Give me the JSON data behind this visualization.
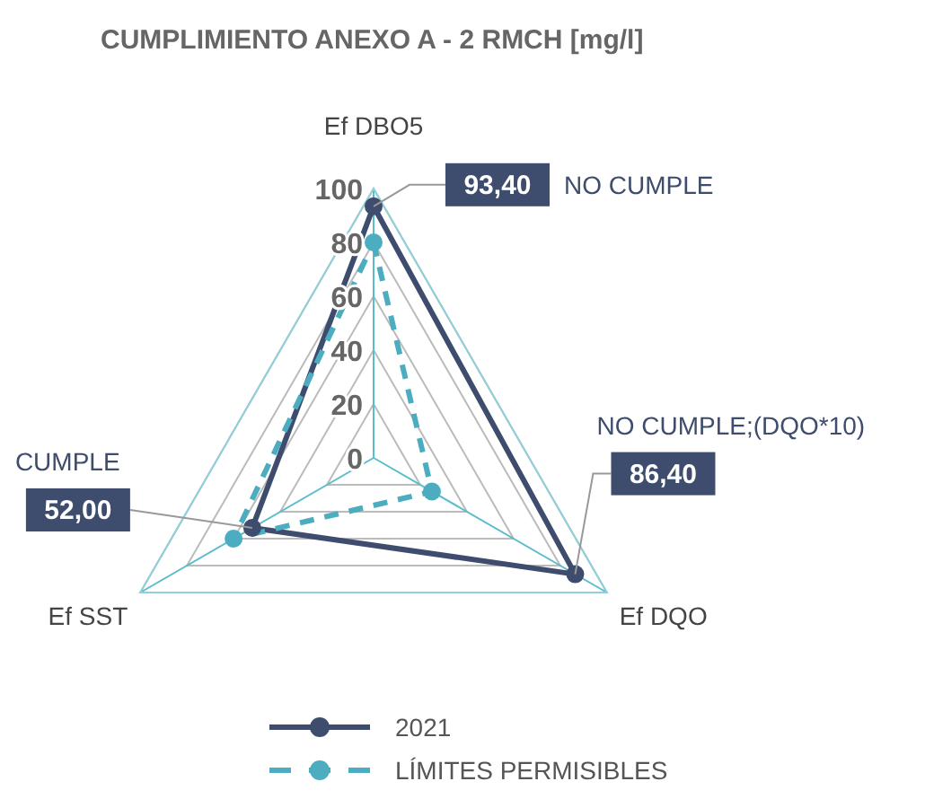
{
  "chart_data": {
    "type": "radar",
    "title": "CUMPLIMIENTO ANEXO A - 2 RMCH [mg/l]",
    "categories": [
      "Ef DBO5",
      "Ef DQO",
      "Ef SST"
    ],
    "series": [
      {
        "name": "2021",
        "color": "#3e4c6d",
        "values": [
          93.4,
          86.4,
          52.0
        ],
        "value_labels": [
          "93,40",
          "86,40",
          "52,00"
        ],
        "line_style": "solid"
      },
      {
        "name": "LÍMITES PERMISIBLES",
        "color": "#4badbf",
        "values": [
          80,
          25,
          60
        ],
        "line_style": "dashed"
      }
    ],
    "ylim": [
      0,
      100
    ],
    "yticks": [
      0,
      20,
      40,
      60,
      80,
      100
    ],
    "grid": true,
    "marker": "circle",
    "legend": "bottom",
    "annotations": [
      {
        "text": "NO CUMPLE",
        "x": "Ef DBO5"
      },
      {
        "text": "NO CUMPLE;(DQO*10)",
        "x": "Ef DQO"
      },
      {
        "text": "CUMPLE",
        "x": "Ef SST"
      }
    ]
  }
}
